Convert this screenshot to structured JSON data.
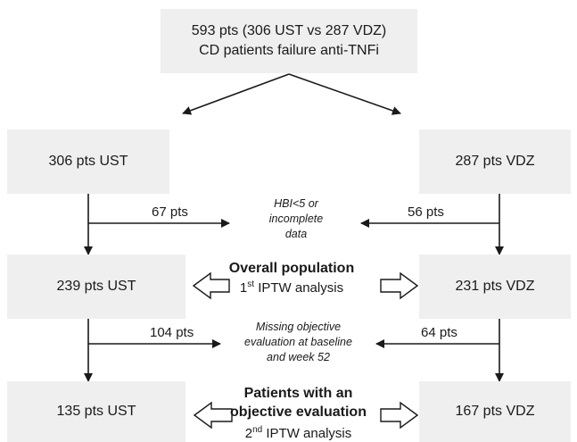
{
  "top": {
    "line1": "593 pts (306 UST vs 287 VDZ)",
    "line2": "CD patients failure anti-TNFi"
  },
  "row1": {
    "left": "306 pts UST",
    "right": "287 pts VDZ"
  },
  "exclusion1": {
    "left_count": "67 pts",
    "right_count": "56 pts",
    "reason_line1": "HBI<5 or",
    "reason_line2": "incomplete",
    "reason_line3": "data"
  },
  "row2": {
    "left": "239 pts UST",
    "right": "231 pts VDZ",
    "title": "Overall population",
    "analysis_ord": "1",
    "analysis_sup": "st",
    "analysis_text": " IPTW analysis"
  },
  "exclusion2": {
    "left_count": "104 pts",
    "right_count": "64 pts",
    "reason_line1": "Missing objective",
    "reason_line2": "evaluation at baseline",
    "reason_line3": "and week 52"
  },
  "row3": {
    "left": "135 pts UST",
    "right": "167 pts VDZ",
    "title_line1": "Patients with an",
    "title_line2": "objective evaluation",
    "analysis_ord": "2",
    "analysis_sup": "nd",
    "analysis_text": " IPTW analysis"
  }
}
